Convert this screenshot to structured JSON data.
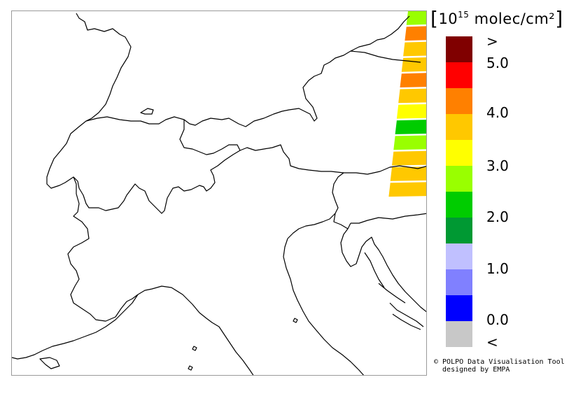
{
  "legend": {
    "unit_prefix": "10",
    "unit_exponent": "15",
    "unit_suffix": " molec/cm²",
    "open_bracket": "[",
    "close_bracket": "]",
    "colors": [
      "#800000",
      "#ff0000",
      "#ff8000",
      "#ffc800",
      "#ffff00",
      "#99ff00",
      "#00cc00",
      "#009933",
      "#c0c0ff",
      "#8080ff",
      "#0000ff",
      "#c8c8c8"
    ],
    "labels": {
      "gt": ">",
      "v50": "5.0",
      "v40": "4.0",
      "v30": "3.0",
      "v20": "2.0",
      "v10": "1.0",
      "v00": "0.0",
      "lt": "<"
    }
  },
  "swath_colors": [
    "#99ff00",
    "#ff8000",
    "#ffc800",
    "#ffc800",
    "#ff8000",
    "#ffc800",
    "#ffff00",
    "#00cc00",
    "#99ff00",
    "#ffc800",
    "#ffc800",
    "#ffc800"
  ],
  "credit": {
    "line1": "© POLPO Data Visualisation Tool",
    "line2": "  designed by EMPA"
  }
}
